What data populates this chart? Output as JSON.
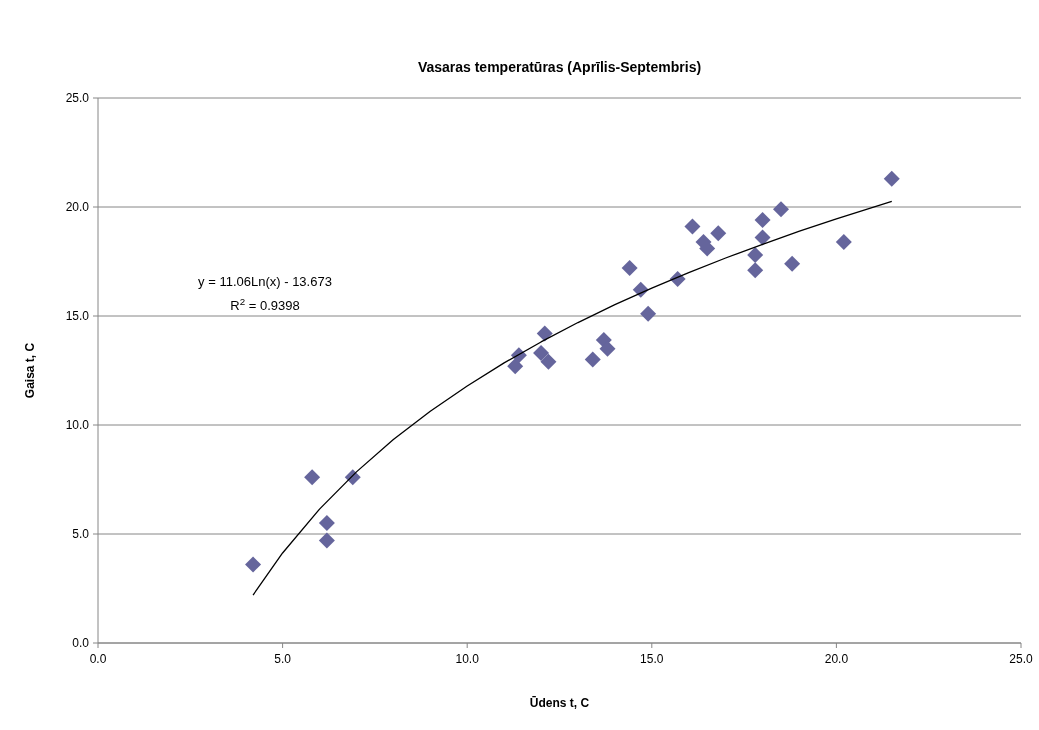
{
  "chart_data": {
    "type": "scatter",
    "title": "Vasaras temperatūras (Aprīlis-Septembris)",
    "xlabel": "Ūdens t, C",
    "ylabel": "Gaisa t, C",
    "xlim": [
      0,
      25
    ],
    "xticks": [
      {
        "value": 0,
        "label": "0.0"
      },
      {
        "value": 5,
        "label": "5.0"
      },
      {
        "value": 10,
        "label": "10.0"
      },
      {
        "value": 15,
        "label": "15.0"
      },
      {
        "value": 20,
        "label": "20.0"
      },
      {
        "value": 25,
        "label": "25.0"
      }
    ],
    "ylim": [
      0,
      25
    ],
    "yticks": [
      {
        "value": 0,
        "label": "0.0"
      },
      {
        "value": 5,
        "label": "5.0"
      },
      {
        "value": 10,
        "label": "10.0"
      },
      {
        "value": 15,
        "label": "15.0"
      },
      {
        "value": 20,
        "label": "20.0"
      },
      {
        "value": 25,
        "label": "25.0"
      }
    ],
    "grid": "y",
    "marker": "diamond",
    "annotations": [
      "y = 11.06Ln(x) - 13.673",
      "R$^{2}$ = 0.9398"
    ],
    "series": [
      {
        "color": "#65659c",
        "x": [
          4.2,
          5.8,
          6.2,
          6.2,
          6.9,
          11.3,
          11.4,
          12.0,
          12.1,
          12.2,
          13.4,
          13.7,
          13.8,
          14.9,
          14.4,
          14.7,
          15.7,
          16.1,
          16.4,
          16.5,
          16.8,
          17.8,
          17.8,
          18.0,
          18.0,
          18.5,
          18.8,
          20.2,
          21.5
        ],
        "values": [
          3.6,
          7.6,
          4.7,
          5.5,
          7.6,
          12.7,
          13.2,
          13.3,
          14.2,
          12.9,
          13.0,
          13.9,
          13.5,
          15.1,
          17.2,
          16.2,
          16.7,
          19.1,
          18.4,
          18.1,
          18.8,
          17.8,
          17.1,
          18.6,
          19.4,
          19.9,
          17.4,
          18.4,
          21.3
        ]
      },
      {
        "type": "line",
        "color": "#000000",
        "marker": "none",
        "x": [
          4.2,
          5,
          6,
          7,
          8,
          9,
          10,
          11,
          12,
          13,
          14,
          15,
          16,
          17,
          18,
          19,
          20,
          21.5
        ],
        "values": [
          2.2,
          4.13,
          6.14,
          7.85,
          9.33,
          10.63,
          11.79,
          12.85,
          13.81,
          14.7,
          15.52,
          16.28,
          16.99,
          17.66,
          18.29,
          18.89,
          19.46,
          20.26
        ]
      }
    ]
  }
}
